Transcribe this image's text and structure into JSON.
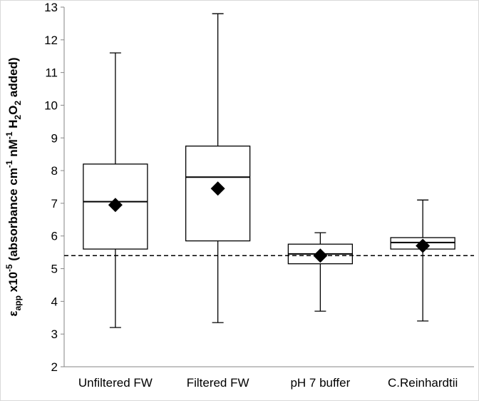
{
  "chart_data": {
    "type": "box",
    "y_label": [
      {
        "text": "ε"
      },
      {
        "text": "app",
        "baseline": "sub"
      },
      {
        "text": " x10"
      },
      {
        "text": "-5",
        "baseline": "sup"
      },
      {
        "text": " (absorbance cm"
      },
      {
        "text": "-1",
        "baseline": "sup"
      },
      {
        "text": " nM"
      },
      {
        "text": "-1",
        "baseline": "sup"
      },
      {
        "text": " H"
      },
      {
        "text": "2",
        "baseline": "sub"
      },
      {
        "text": "O"
      },
      {
        "text": "2",
        "baseline": "sub"
      },
      {
        "text": " added)"
      }
    ],
    "categories": [
      "Unfiltered FW",
      "Filtered FW",
      "pH 7 buffer",
      "C.Reinhardtii"
    ],
    "boxes": [
      {
        "min": 3.2,
        "q1": 5.6,
        "median": 7.05,
        "q3": 8.2,
        "max": 11.6,
        "mean": 6.95
      },
      {
        "min": 3.35,
        "q1": 5.85,
        "median": 7.8,
        "q3": 8.75,
        "max": 12.8,
        "mean": 7.45
      },
      {
        "min": 3.7,
        "q1": 5.15,
        "median": 5.45,
        "q3": 5.75,
        "max": 6.1,
        "mean": 5.4
      },
      {
        "min": 3.4,
        "q1": 5.6,
        "median": 5.8,
        "q3": 5.95,
        "max": 7.1,
        "mean": 5.7
      }
    ],
    "reference_line": 5.4,
    "ylim": [
      2,
      13
    ],
    "yticks": [
      2,
      3,
      4,
      5,
      6,
      7,
      8,
      9,
      10,
      11,
      12,
      13
    ]
  }
}
